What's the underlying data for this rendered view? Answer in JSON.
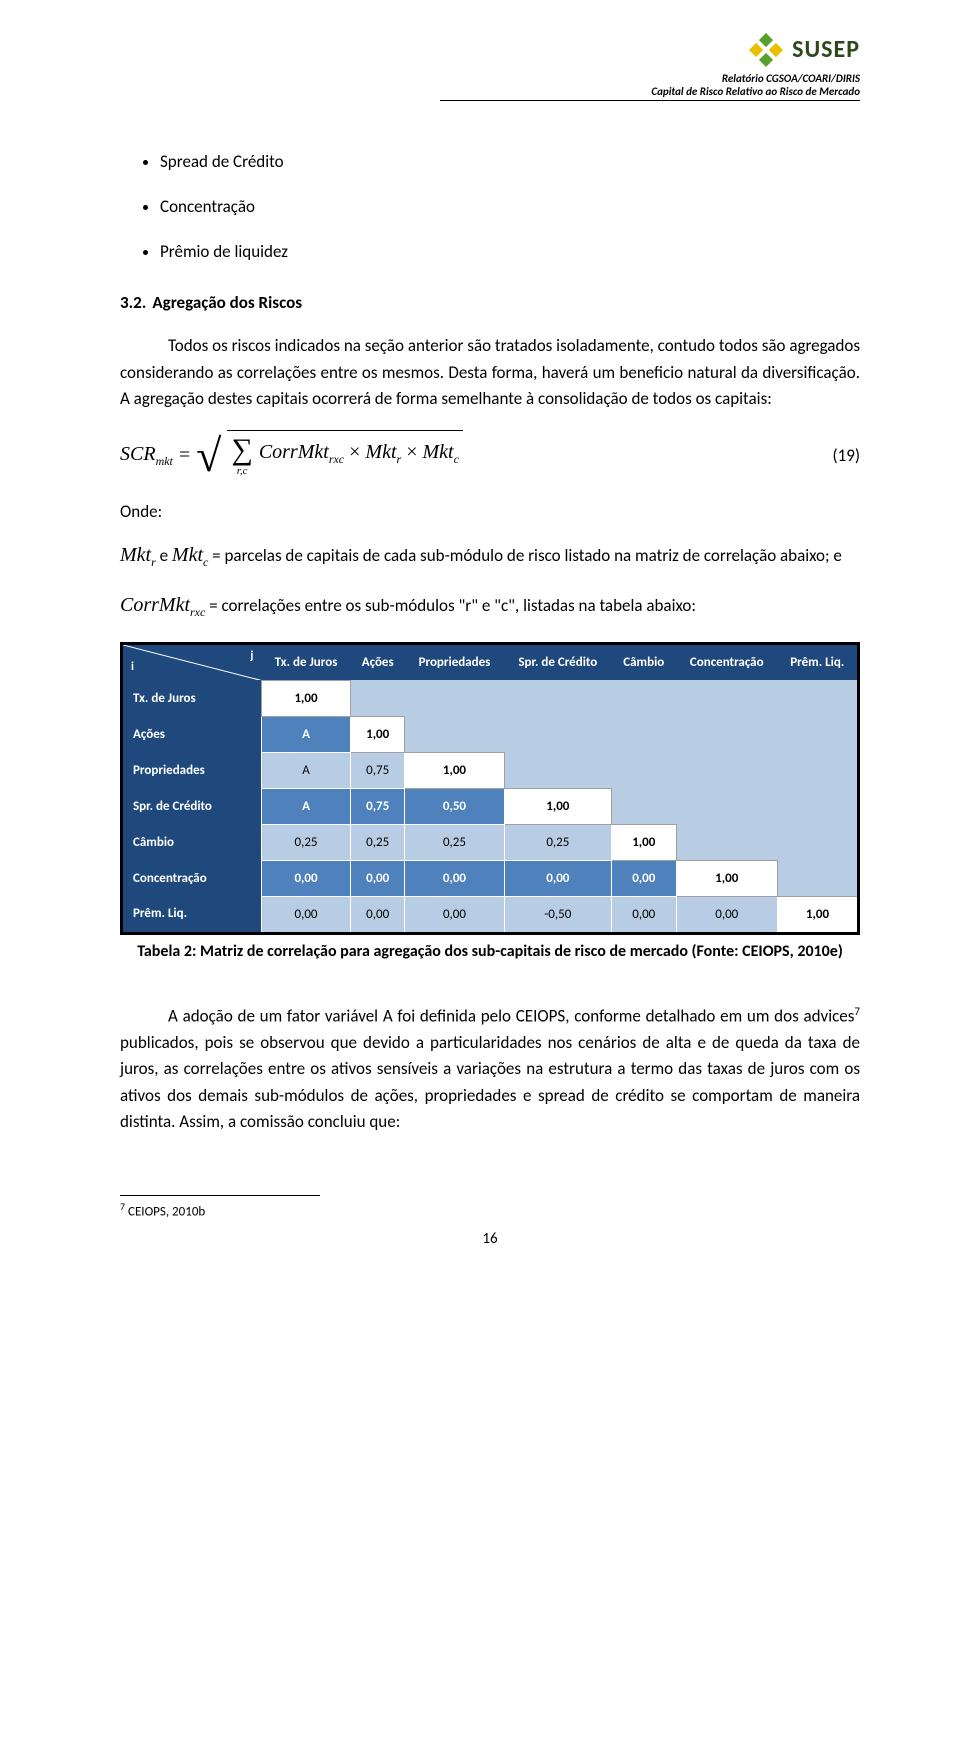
{
  "header": {
    "logo_text": "SUSEP",
    "report_line1": "Relatório CGSOA/COARI/DIRIS",
    "report_line2": "Capital de Risco Relativo ao Risco de Mercado",
    "logo_colors": {
      "green": "#5aa02c",
      "dark_green": "#2a4a1a",
      "yellow": "#e8c000"
    }
  },
  "bullets": {
    "items": [
      "Spread de Crédito",
      "Concentração",
      "Prêmio de liquidez"
    ]
  },
  "section": {
    "num": "3.2.",
    "title": "Agregação dos Riscos"
  },
  "para1": "Todos os riscos indicados na seção anterior são tratados isoladamente, contudo todos são agregados considerando as correlações entre os mesmos. Desta forma, haverá um beneficio natural da diversificação. A agregação destes capitais ocorrerá de forma semelhante à consolidação de todos os capitais:",
  "formula": {
    "lhs": "SCR",
    "lhs_sub": "mkt",
    "eq": "=",
    "sum_sub": "r,c",
    "term1": "CorrMkt",
    "term1_sub": "rxc",
    "times1": "×",
    "term2": "Mkt",
    "term2_sub": "r",
    "times2": "×",
    "term3": "Mkt",
    "term3_sub": "c",
    "eq_num": "(19)"
  },
  "onde": "Onde:",
  "para2_pre": "Mkt",
  "para2_sub_r": "r",
  "para2_e": " e ",
  "para2_sub_c": "c",
  "para2_rest": " = parcelas de capitais de cada sub-módulo de risco listado na matriz de correlação abaixo; e",
  "para3_pre": "CorrMkt",
  "para3_sub": "rxc",
  "para3_rest": " = correlações entre os sub-módulos \"r\" e \"c\", listadas na tabela abaixo:",
  "table": {
    "corner_i": "i",
    "corner_j": "j",
    "columns": [
      "Tx. de Juros",
      "Ações",
      "Propriedades",
      "Spr. de Crédito",
      "Câmbio",
      "Concentração",
      "Prêm. Liq."
    ],
    "rows": [
      {
        "label": "Tx. de Juros",
        "vals": [
          "1,00",
          "",
          "",
          "",
          "",
          "",
          ""
        ]
      },
      {
        "label": "Ações",
        "vals": [
          "A",
          "1,00",
          "",
          "",
          "",
          "",
          ""
        ]
      },
      {
        "label": "Propriedades",
        "vals": [
          "A",
          "0,75",
          "1,00",
          "",
          "",
          "",
          ""
        ]
      },
      {
        "label": "Spr. de Crédito",
        "vals": [
          "A",
          "0,75",
          "0,50",
          "1,00",
          "",
          "",
          ""
        ]
      },
      {
        "label": "Câmbio",
        "vals": [
          "0,25",
          "0,25",
          "0,25",
          "0,25",
          "1,00",
          "",
          ""
        ]
      },
      {
        "label": "Concentração",
        "vals": [
          "0,00",
          "0,00",
          "0,00",
          "0,00",
          "0,00",
          "1,00",
          ""
        ]
      },
      {
        "label": "Prêm. Liq.",
        "vals": [
          "0,00",
          "0,00",
          "0,00",
          "-0,50",
          "0,00",
          "0,00",
          "1,00"
        ]
      }
    ],
    "colors": {
      "header_bg": "#1f497d",
      "row_dark_bg": "#4f81bd",
      "row_light_bg": "#b8cce4",
      "diag_bg": "#ffffff",
      "border": "#000000"
    }
  },
  "table_caption": "Tabela 2: Matriz de correlação para agregação dos sub-capitais de risco de mercado (Fonte: CEIOPS, 2010e)",
  "para4": "A adoção de um fator variável A foi definida pelo CEIOPS, conforme detalhado em um dos advices",
  "para4_sup": "7",
  "para4_rest": " publicados, pois se observou que devido a particularidades nos cenários de alta e de queda da taxa de juros, as correlações entre os ativos sensíveis a variações na estrutura a termo das taxas de juros com os ativos dos demais sub-módulos de ações, propriedades e spread de crédito se comportam de maneira distinta. Assim, a comissão concluiu que:",
  "footnote": {
    "sup": "7",
    "text": " CEIOPS, 2010b"
  },
  "pagenum": "16"
}
